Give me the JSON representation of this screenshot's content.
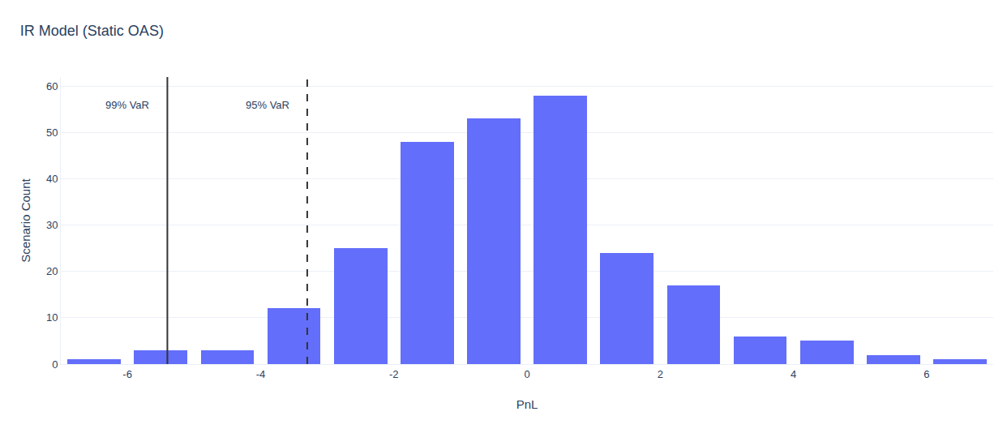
{
  "chart_data": {
    "type": "histogram",
    "title": "IR Model (Static OAS)",
    "x_label": "PnL",
    "y_label": "Scenario Count",
    "bins": [
      -7,
      -6,
      -5,
      -4,
      -3,
      -2,
      -1,
      0,
      1,
      2,
      3,
      4,
      5,
      6,
      7
    ],
    "values": [
      1,
      3,
      3,
      12,
      25,
      48,
      53,
      58,
      24,
      17,
      6,
      5,
      2,
      1
    ],
    "color": "#636efa",
    "xlim": [
      -7,
      7
    ],
    "xticks": [
      -6,
      -4,
      -2,
      0,
      2,
      4,
      6
    ],
    "ylim": [
      0,
      62
    ],
    "yticks": [
      0,
      10,
      20,
      30,
      40,
      50,
      60
    ],
    "grid": true,
    "var_lines": [
      {
        "label": "99% VaR",
        "value": -5.4,
        "line_style": "solid"
      },
      {
        "label": "95% VaR",
        "value": -3.3,
        "line_style": "dashed"
      }
    ]
  }
}
